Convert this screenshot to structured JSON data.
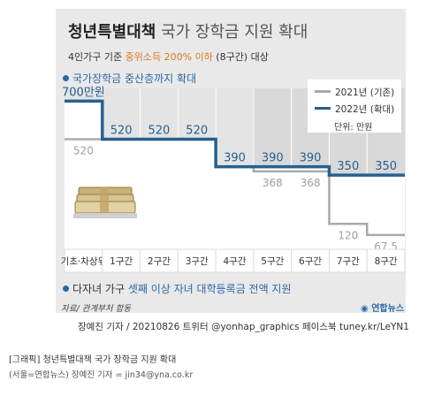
{
  "title_bold": "청년특별대책",
  "title_rest": "국가 장학금 지원 확대",
  "subtitle_pre": "4인가구 기준",
  "subtitle_highlight": "중위소득 200% 이하",
  "subtitle_post": "(8구간) 대상",
  "section1": "국가장학금 중산층까지 확대",
  "legend": {
    "items": [
      {
        "label": "2021년 (기존)",
        "color": "#a9a9a9"
      },
      {
        "label": "2022년 (확대)",
        "color": "#27608f"
      }
    ],
    "unit": "단위: 만원"
  },
  "chart_data": {
    "type": "line",
    "step": true,
    "categories": [
      "기초·차상위",
      "1구간",
      "2구간",
      "3구간",
      "4구간",
      "5구간",
      "6구간",
      "7구간",
      "8구간"
    ],
    "series": [
      {
        "name": "2021년 (기존)",
        "values": [
          520,
          520,
          520,
          520,
          390,
          368,
          368,
          120,
          67.5
        ],
        "labels": [
          "520",
          "",
          "",
          "",
          "",
          "368",
          "368",
          "120",
          "67.5"
        ],
        "color": "#a9a9a9"
      },
      {
        "name": "2022년 (확대)",
        "values": [
          700,
          520,
          520,
          520,
          390,
          390,
          390,
          350,
          350
        ],
        "labels": [
          "700만원",
          "520",
          "520",
          "520",
          "390",
          "390",
          "390",
          "350",
          "350"
        ],
        "color": "#27608f"
      }
    ],
    "highlighted_categories": [
      "5구간",
      "6구간",
      "7구간",
      "8구간"
    ],
    "ylim": [
      0,
      760
    ]
  },
  "section2_pre": "다자녀 가구",
  "section2_blue": "셋째 이상 자녀 대학등록금 전액 지원",
  "source": "자료/ 관계부처 합동",
  "logo": "연합뉴스",
  "credit": "장예진 기자 / 20210826 트위터 @yonhap_graphics  페이스북 tuney.kr/LeYN1",
  "caption1": "[그래픽] 청년특별대책 국가 장학금 지원 확대",
  "caption2": "(서울=연합뉴스) 장예진 기자 = jin34@yna.co.kr"
}
